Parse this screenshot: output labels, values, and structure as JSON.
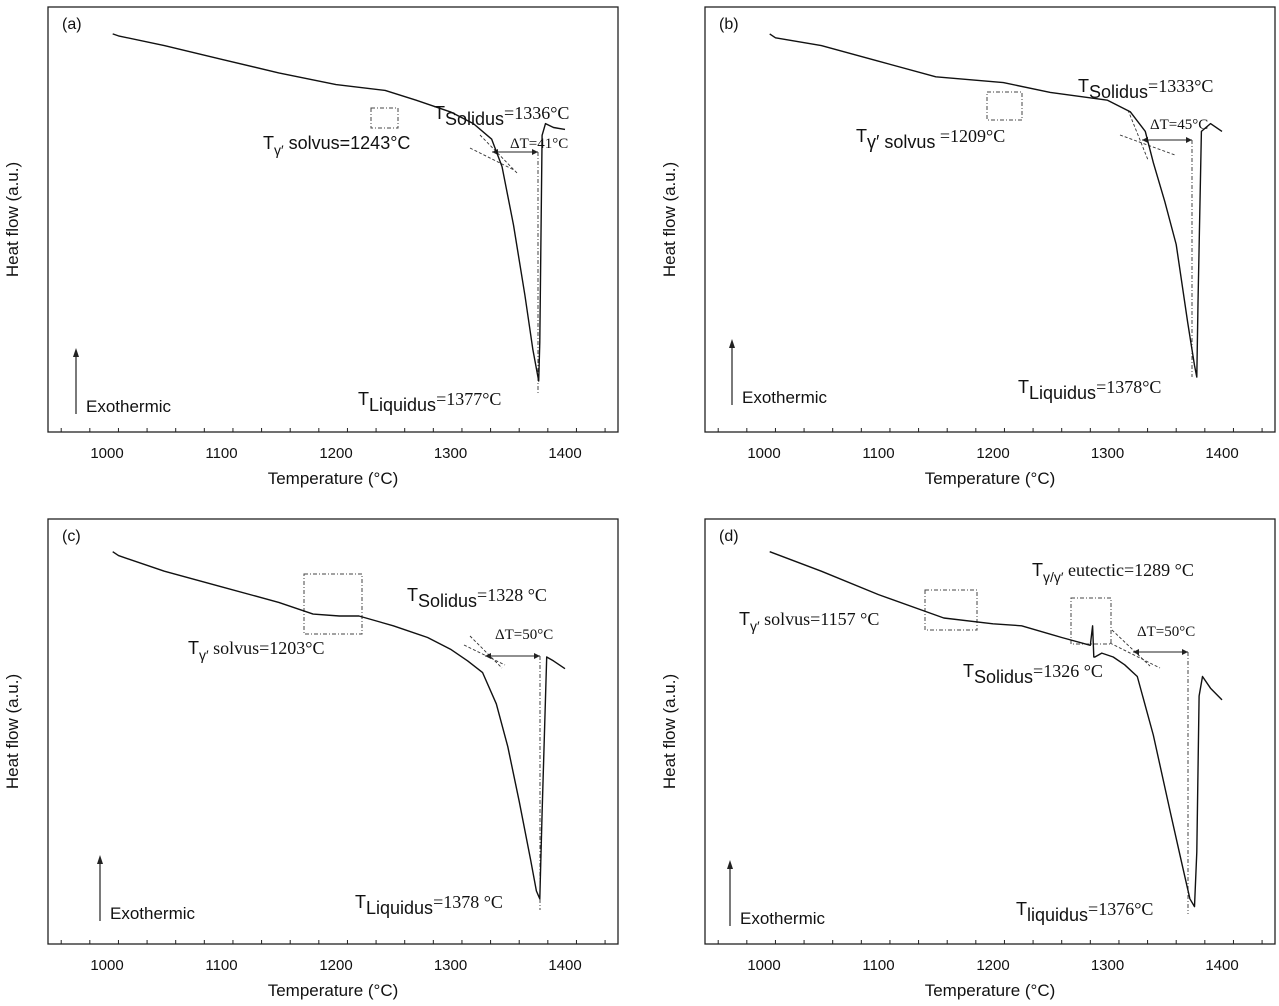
{
  "chart_data": [
    {
      "type": "line",
      "panel_label": "(a)",
      "xlabel": "Temperature (°C)",
      "ylabel": "Heat flow (a.u.)",
      "xlim": [
        960,
        1460
      ],
      "xticks": [
        1000,
        1100,
        1200,
        1300,
        1400
      ],
      "yticks": "none",
      "grid": false,
      "series": [
        {
          "x": [
            1005,
            1010,
            1050,
            1100,
            1150,
            1200,
            1243,
            1270,
            1300,
            1320,
            1336,
            1345,
            1355,
            1365,
            1372,
            1377,
            1378,
            1380,
            1383,
            1390,
            1400
          ],
          "y": [
            0.99,
            0.985,
            0.96,
            0.925,
            0.89,
            0.86,
            0.845,
            0.82,
            0.79,
            0.76,
            0.72,
            0.65,
            0.5,
            0.32,
            0.18,
            0.1,
            0.2,
            0.73,
            0.76,
            0.75,
            0.745
          ]
        }
      ],
      "annotations": [
        {
          "text_prefix": "T",
          "text_sub": "γ′",
          "text_rest": " solvus=1243°C",
          "x": 1243
        },
        {
          "text_prefix": "T",
          "text_sub": "Solidus",
          "text_rest": "=1336°C",
          "x": 1336
        },
        {
          "text": "ΔT=41°C"
        },
        {
          "text_prefix": "T",
          "text_sub": "Liquidus",
          "text_rest": "=1377°C",
          "x": 1377
        },
        {
          "text": "Exothermic"
        }
      ]
    },
    {
      "type": "line",
      "panel_label": "(b)",
      "xlabel": "Temperature (°C)",
      "ylabel": "Heat flow (a.u.)",
      "xlim": [
        960,
        1460
      ],
      "xticks": [
        1000,
        1100,
        1200,
        1300,
        1400
      ],
      "yticks": "none",
      "grid": false,
      "series": [
        {
          "x": [
            1005,
            1010,
            1050,
            1100,
            1150,
            1209,
            1250,
            1300,
            1320,
            1333,
            1340,
            1350,
            1360,
            1370,
            1376,
            1378,
            1379,
            1382,
            1390,
            1400
          ],
          "y": [
            0.99,
            0.98,
            0.96,
            0.92,
            0.88,
            0.865,
            0.84,
            0.82,
            0.79,
            0.74,
            0.66,
            0.56,
            0.45,
            0.25,
            0.14,
            0.11,
            0.3,
            0.74,
            0.76,
            0.74
          ]
        }
      ],
      "annotations": [
        {
          "text_prefix": "T",
          "text_sub": "γ′ solvus",
          "text_rest": " =1209°C",
          "x": 1209
        },
        {
          "text_prefix": "T",
          "text_sub": "Solidus",
          "text_rest": "=1333°C",
          "x": 1333
        },
        {
          "text": "ΔT=45°C"
        },
        {
          "text_prefix": "T",
          "text_sub": "Liquidus",
          "text_rest": "=1378°C",
          "x": 1378
        },
        {
          "text": "Exothermic"
        }
      ]
    },
    {
      "type": "line",
      "panel_label": "(c)",
      "xlabel": "Temperature (°C)",
      "ylabel": "Heat flow (a.u.)",
      "xlim": [
        960,
        1460
      ],
      "xticks": [
        1000,
        1100,
        1200,
        1300,
        1400
      ],
      "yticks": "none",
      "grid": false,
      "series": [
        {
          "x": [
            1005,
            1010,
            1050,
            1100,
            1150,
            1180,
            1203,
            1220,
            1250,
            1280,
            1300,
            1315,
            1328,
            1340,
            1350,
            1360,
            1370,
            1375,
            1378,
            1380,
            1384,
            1390,
            1400
          ],
          "y": [
            0.97,
            0.96,
            0.92,
            0.88,
            0.84,
            0.81,
            0.805,
            0.805,
            0.78,
            0.75,
            0.72,
            0.69,
            0.66,
            0.58,
            0.47,
            0.33,
            0.18,
            0.1,
            0.08,
            0.3,
            0.7,
            0.69,
            0.67
          ]
        }
      ],
      "annotations": [
        {
          "text_prefix": "T",
          "text_sub": "γ′",
          "text_rest": " solvus=1203°C",
          "x": 1203
        },
        {
          "text_prefix": "T",
          "text_sub": "Solidus",
          "text_rest": "=1328 °C",
          "x": 1328
        },
        {
          "text": "ΔT=50°C"
        },
        {
          "text_prefix": "T",
          "text_sub": "Liquidus",
          "text_rest": "=1378 °C",
          "x": 1378
        },
        {
          "text": "Exothermic"
        }
      ]
    },
    {
      "type": "line",
      "panel_label": "(d)",
      "xlabel": "Temperature (°C)",
      "ylabel": "Heat flow (a.u.)",
      "xlim": [
        960,
        1460
      ],
      "xticks": [
        1000,
        1100,
        1200,
        1300,
        1400
      ],
      "yticks": "none",
      "grid": false,
      "series": [
        {
          "x": [
            1005,
            1050,
            1100,
            1157,
            1200,
            1225,
            1260,
            1285,
            1287,
            1288,
            1289,
            1295,
            1305,
            1315,
            1326,
            1340,
            1355,
            1365,
            1372,
            1376,
            1378,
            1380,
            1383,
            1390,
            1400
          ],
          "y": [
            0.97,
            0.92,
            0.86,
            0.8,
            0.785,
            0.78,
            0.75,
            0.73,
            0.78,
            0.7,
            0.7,
            0.71,
            0.7,
            0.68,
            0.65,
            0.5,
            0.3,
            0.17,
            0.08,
            0.06,
            0.2,
            0.6,
            0.65,
            0.62,
            0.59
          ]
        }
      ],
      "annotations": [
        {
          "text_prefix": "T",
          "text_sub": "γ′",
          "text_rest": " solvus=1157 °C",
          "x": 1157
        },
        {
          "text_prefix": "T",
          "text_sub": "γ/γ′",
          "text_rest": " eutectic=1289 °C",
          "x": 1289
        },
        {
          "text": "ΔT=50°C"
        },
        {
          "text_prefix": "T",
          "text_sub": "Solidus",
          "text_rest": "=1326 °C",
          "x": 1326
        },
        {
          "text_prefix": "T",
          "text_sub": "liquidus",
          "text_rest": "=1376°C",
          "x": 1376
        },
        {
          "text": "Exothermic"
        }
      ]
    }
  ]
}
